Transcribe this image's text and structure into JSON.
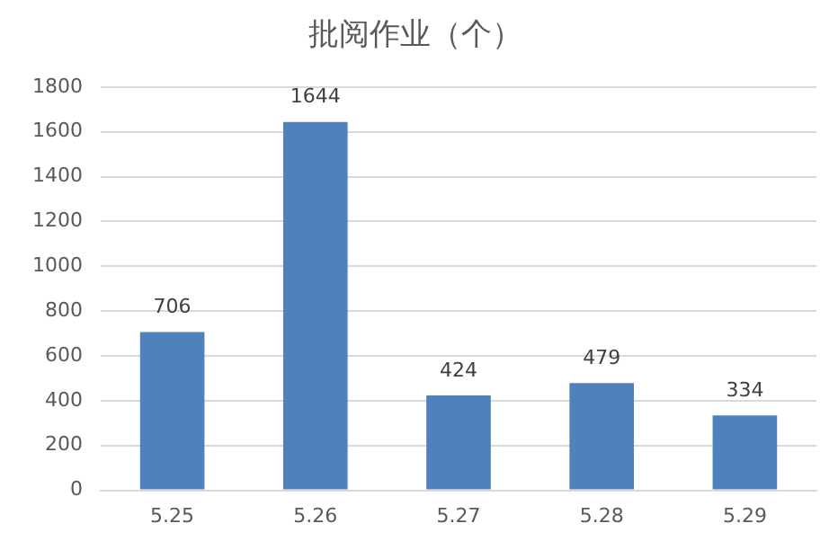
{
  "chart_data": {
    "type": "bar",
    "title": "批阅作业（个）",
    "categories": [
      "5.25",
      "5.26",
      "5.27",
      "5.28",
      "5.29"
    ],
    "values": [
      706,
      1644,
      424,
      479,
      334
    ],
    "color": "#4f81bd",
    "ylim": [
      0,
      1800
    ],
    "yticks": [
      0,
      200,
      400,
      600,
      800,
      1000,
      1200,
      1400,
      1600,
      1800
    ],
    "grid": "y",
    "data_labels": true,
    "legend": false
  }
}
